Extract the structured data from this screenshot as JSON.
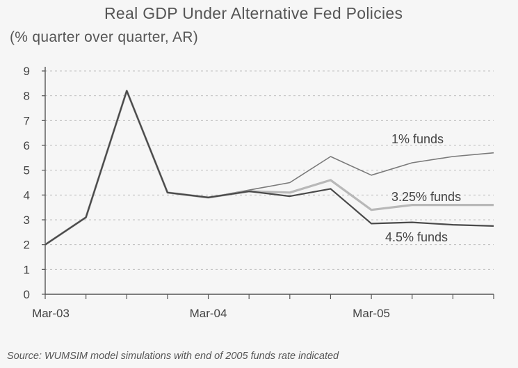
{
  "chart_data": {
    "type": "line",
    "title": "Real GDP Under Alternative Fed Policies",
    "subtitle": "(% quarter over quarter, AR)",
    "source": "Source: WUMSIM model simulations with end of 2005 funds rate indicated",
    "x": [
      "Mar-03",
      "Jun-03",
      "Sep-03",
      "Dec-03",
      "Mar-04",
      "Jun-04",
      "Sep-04",
      "Dec-04",
      "Mar-05",
      "Jun-05",
      "Sep-05",
      "Dec-05"
    ],
    "x_tick_labels": [
      "Mar-03",
      "Mar-04",
      "Mar-05"
    ],
    "ylim": [
      0,
      9
    ],
    "y_ticks": [
      0,
      1,
      2,
      3,
      4,
      5,
      6,
      7,
      8,
      9
    ],
    "grid": "horizontal dashed",
    "series": [
      {
        "name": "1% funds",
        "color": "#7a7a7a",
        "values": [
          2.0,
          3.1,
          8.2,
          4.1,
          3.9,
          4.2,
          4.5,
          5.55,
          4.8,
          5.3,
          5.55,
          5.7
        ]
      },
      {
        "name": "3.25% funds",
        "color": "#b8b8b8",
        "values": [
          2.0,
          3.1,
          8.2,
          4.1,
          3.9,
          4.15,
          4.1,
          4.6,
          3.4,
          3.6,
          3.6,
          3.6
        ]
      },
      {
        "name": "4.5% funds",
        "color": "#4a4a4a",
        "values": [
          2.0,
          3.1,
          8.2,
          4.1,
          3.9,
          4.15,
          3.95,
          4.25,
          2.85,
          2.9,
          2.8,
          2.75
        ]
      }
    ]
  }
}
